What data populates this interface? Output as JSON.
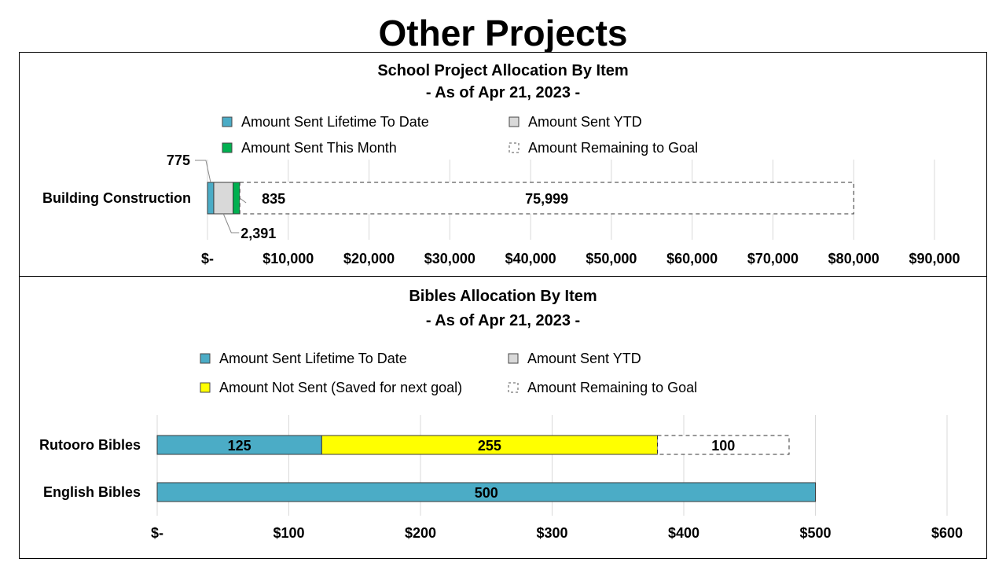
{
  "page": {
    "title": "Other Projects"
  },
  "colors": {
    "lifetime": "#4BACC6",
    "ytd": "#D9D9D9",
    "month": "#00B050",
    "not_sent": "#FFFF00",
    "remaining": "#FFFFFF",
    "grid": "#D9D9D9"
  },
  "chart_data": [
    {
      "type": "bar",
      "orientation": "horizontal",
      "stacked": true,
      "title": "School Project Allocation By Item",
      "subtitle": "- As of Apr 21, 2023 -",
      "categories": [
        "Building Construction"
      ],
      "legend": [
        {
          "label": "Amount Sent Lifetime To Date",
          "key": "lifetime"
        },
        {
          "label": "Amount Sent YTD",
          "key": "ytd"
        },
        {
          "label": "Amount Sent This Month",
          "key": "month"
        },
        {
          "label": "Amount Remaining to Goal",
          "key": "remaining"
        }
      ],
      "series": [
        {
          "name": "Amount Sent Lifetime To Date",
          "key": "lifetime",
          "values": [
            775
          ],
          "labels": [
            "775"
          ]
        },
        {
          "name": "Amount Sent YTD",
          "key": "ytd",
          "values": [
            2391
          ],
          "labels": [
            "2,391"
          ]
        },
        {
          "name": "Amount Sent This Month",
          "key": "month",
          "values": [
            835
          ],
          "labels": [
            "835"
          ]
        },
        {
          "name": "Amount Remaining to Goal",
          "key": "remaining",
          "values": [
            75999
          ],
          "labels": [
            "75,999"
          ]
        }
      ],
      "xlim": [
        0,
        90000
      ],
      "xticks": [
        0,
        10000,
        20000,
        30000,
        40000,
        50000,
        60000,
        70000,
        80000,
        90000
      ],
      "xtick_labels": [
        "$-",
        "$10,000",
        "$20,000",
        "$30,000",
        "$40,000",
        "$50,000",
        "$60,000",
        "$70,000",
        "$80,000",
        "$90,000"
      ],
      "grid": true
    },
    {
      "type": "bar",
      "orientation": "horizontal",
      "stacked": true,
      "title": "Bibles Allocation By Item",
      "subtitle": "- As of Apr 21, 2023 -",
      "categories": [
        "Rutooro Bibles",
        "English Bibles"
      ],
      "legend": [
        {
          "label": "Amount Sent Lifetime To Date",
          "key": "lifetime"
        },
        {
          "label": "Amount Sent YTD",
          "key": "ytd"
        },
        {
          "label": "Amount Not Sent (Saved for next goal)",
          "key": "not_sent"
        },
        {
          "label": "Amount Remaining to Goal",
          "key": "remaining"
        }
      ],
      "series": [
        {
          "name": "Amount Sent Lifetime To Date",
          "key": "lifetime",
          "values": [
            125,
            500
          ],
          "labels": [
            "125",
            "500"
          ]
        },
        {
          "name": "Amount Sent YTD",
          "key": "ytd",
          "values": [
            0,
            0
          ],
          "labels": [
            "",
            ""
          ]
        },
        {
          "name": "Amount Not Sent (Saved for next goal)",
          "key": "not_sent",
          "values": [
            255,
            0
          ],
          "labels": [
            "255",
            ""
          ]
        },
        {
          "name": "Amount Remaining to Goal",
          "key": "remaining",
          "values": [
            100,
            0
          ],
          "labels": [
            "100",
            ""
          ]
        }
      ],
      "xlim": [
        0,
        600
      ],
      "xticks": [
        0,
        100,
        200,
        300,
        400,
        500,
        600
      ],
      "xtick_labels": [
        "$-",
        "$100",
        "$200",
        "$300",
        "$400",
        "$500",
        "$600"
      ],
      "grid": true
    }
  ]
}
